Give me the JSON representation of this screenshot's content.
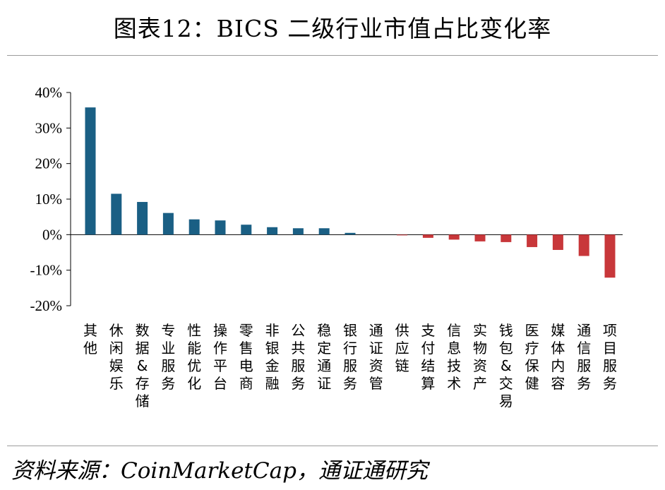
{
  "title": "图表12：BICS 二级行业市值占比变化率",
  "source": "资料来源：CoinMarketCap，通证通研究",
  "colors": {
    "positive": "#1a5f84",
    "negative": "#c8373a",
    "axis": "#000000",
    "rule": "#9c9c9c"
  },
  "chart_data": {
    "type": "bar",
    "categories": [
      "其他",
      "休闲娱乐",
      "数据&存储",
      "专业服务",
      "性能优化",
      "操作平台",
      "零售电商",
      "非银金融",
      "公共服务",
      "稳定通证",
      "银行服务",
      "通证资管",
      "供应链",
      "支付结算",
      "信息技术",
      "实物资产",
      "钱包&交易",
      "医疗保健",
      "媒体内容",
      "通信服务",
      "项目服务"
    ],
    "values": [
      35.8,
      11.5,
      9.2,
      6.1,
      4.3,
      4.0,
      2.8,
      2.1,
      1.8,
      1.8,
      0.5,
      0.0,
      -0.2,
      -0.9,
      -1.4,
      -1.9,
      -2.1,
      -3.5,
      -4.3,
      -6.0,
      -12.1
    ],
    "yticks": [
      "40%",
      "30%",
      "20%",
      "10%",
      "0%",
      "-10%",
      "-20%"
    ],
    "ytick_values": [
      40,
      30,
      20,
      10,
      0,
      -10,
      -20
    ],
    "ylim": [
      -20,
      40
    ],
    "xlabel": "",
    "ylabel": "",
    "grid": false,
    "legend": "none"
  }
}
